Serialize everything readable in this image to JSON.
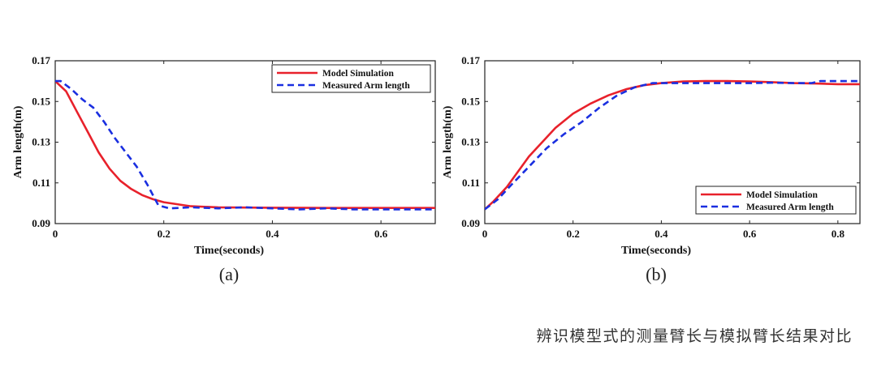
{
  "caption": "辨识模型式的测量臂长与模拟臂长结果对比",
  "colors": {
    "model": "#e8212b",
    "measured": "#1a2fe0"
  },
  "chart_data": [
    {
      "type": "line",
      "panel_label": "(a)",
      "title": "",
      "xlabel": "Time(seconds)",
      "ylabel": "Arm length(m)",
      "xlim": [
        0,
        0.7
      ],
      "ylim": [
        0.09,
        0.17
      ],
      "xticks": [
        0,
        0.2,
        0.4,
        0.6
      ],
      "xtick_labels": [
        "0",
        "0.2",
        "0.4",
        "0.6"
      ],
      "yticks": [
        0.09,
        0.11,
        0.13,
        0.15,
        0.17
      ],
      "ytick_labels": [
        "0.09",
        "0.11",
        "0.13",
        "0.15",
        "0.17"
      ],
      "legend_position": "top-right",
      "series": [
        {
          "name": "Model Simulation",
          "style": "solid",
          "x": [
            0,
            0.02,
            0.04,
            0.06,
            0.08,
            0.1,
            0.12,
            0.14,
            0.16,
            0.18,
            0.2,
            0.25,
            0.3,
            0.4,
            0.5,
            0.6,
            0.7
          ],
          "y": [
            0.16,
            0.155,
            0.145,
            0.135,
            0.125,
            0.117,
            0.111,
            0.107,
            0.104,
            0.102,
            0.1005,
            0.0985,
            0.098,
            0.0978,
            0.0977,
            0.0977,
            0.0977
          ]
        },
        {
          "name": "Measured Arm length",
          "style": "dashed",
          "x": [
            0,
            0.01,
            0.03,
            0.05,
            0.07,
            0.09,
            0.11,
            0.13,
            0.15,
            0.17,
            0.19,
            0.21,
            0.25,
            0.3,
            0.35,
            0.4,
            0.45,
            0.5,
            0.55,
            0.6,
            0.65,
            0.7
          ],
          "y": [
            0.16,
            0.16,
            0.156,
            0.151,
            0.147,
            0.14,
            0.132,
            0.125,
            0.118,
            0.109,
            0.099,
            0.0975,
            0.098,
            0.0975,
            0.098,
            0.0975,
            0.097,
            0.0975,
            0.097,
            0.097,
            0.097,
            0.097
          ]
        }
      ]
    },
    {
      "type": "line",
      "panel_label": "(b)",
      "title": "",
      "xlabel": "Time(seconds)",
      "ylabel": "Arm length(m)",
      "xlim": [
        0,
        0.85
      ],
      "ylim": [
        0.09,
        0.17
      ],
      "xticks": [
        0,
        0.2,
        0.4,
        0.6,
        0.8
      ],
      "xtick_labels": [
        "0",
        "0.2",
        "0.4",
        "0.6",
        "0.8"
      ],
      "yticks": [
        0.09,
        0.11,
        0.13,
        0.15,
        0.17
      ],
      "ytick_labels": [
        "0.09",
        "0.11",
        "0.13",
        "0.15",
        "0.17"
      ],
      "legend_position": "bottom-right",
      "series": [
        {
          "name": "Model Simulation",
          "style": "solid",
          "x": [
            0,
            0.02,
            0.05,
            0.08,
            0.1,
            0.13,
            0.16,
            0.2,
            0.24,
            0.28,
            0.32,
            0.36,
            0.4,
            0.45,
            0.5,
            0.55,
            0.6,
            0.65,
            0.7,
            0.75,
            0.8,
            0.85
          ],
          "y": [
            0.097,
            0.101,
            0.108,
            0.117,
            0.123,
            0.13,
            0.137,
            0.144,
            0.149,
            0.153,
            0.156,
            0.158,
            0.159,
            0.1598,
            0.16,
            0.16,
            0.1598,
            0.1595,
            0.159,
            0.1588,
            0.1585,
            0.1585
          ]
        },
        {
          "name": "Measured Arm length",
          "style": "dashed",
          "x": [
            0,
            0.03,
            0.06,
            0.1,
            0.14,
            0.18,
            0.22,
            0.26,
            0.3,
            0.34,
            0.38,
            0.4,
            0.45,
            0.5,
            0.55,
            0.6,
            0.65,
            0.7,
            0.74,
            0.76,
            0.8,
            0.85
          ],
          "y": [
            0.097,
            0.102,
            0.109,
            0.118,
            0.127,
            0.134,
            0.14,
            0.147,
            0.153,
            0.157,
            0.159,
            0.159,
            0.159,
            0.159,
            0.159,
            0.159,
            0.1592,
            0.159,
            0.159,
            0.16,
            0.16,
            0.16
          ]
        }
      ]
    }
  ]
}
